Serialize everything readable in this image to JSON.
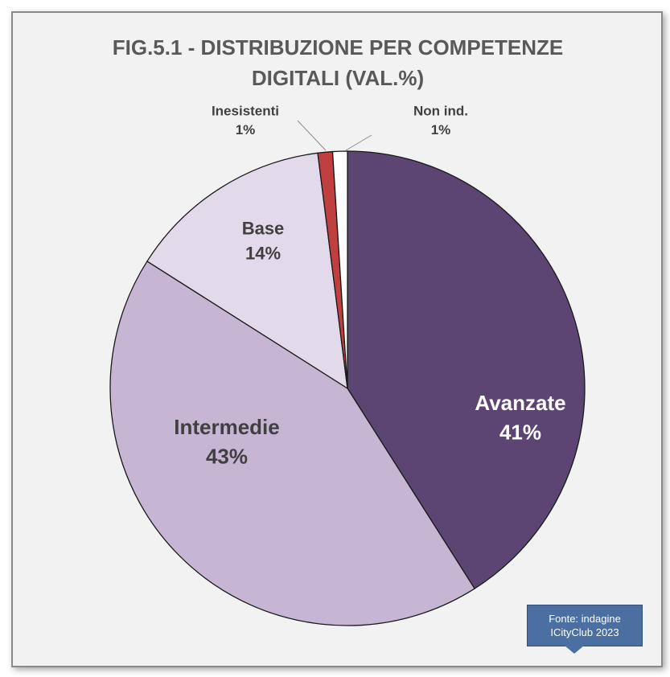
{
  "chart_data": {
    "type": "pie",
    "title": "FIG.5.1  - DISTRIBUZIONE PER COMPETENZE DIGITALI (VAL.%)",
    "categories": [
      "Avanzate",
      "Intermedie",
      "Base",
      "Inesistenti",
      "Non ind."
    ],
    "values": [
      41,
      43,
      14,
      1,
      1
    ],
    "value_labels": [
      "41%",
      "43%",
      "14%",
      "1%",
      "1%"
    ],
    "colors": [
      "#5c4573",
      "#c6b6d4",
      "#e2d9ea",
      "#c0403f",
      "#ffffff"
    ],
    "annotation": "Fonte: indagine ICityClub 2023"
  }
}
